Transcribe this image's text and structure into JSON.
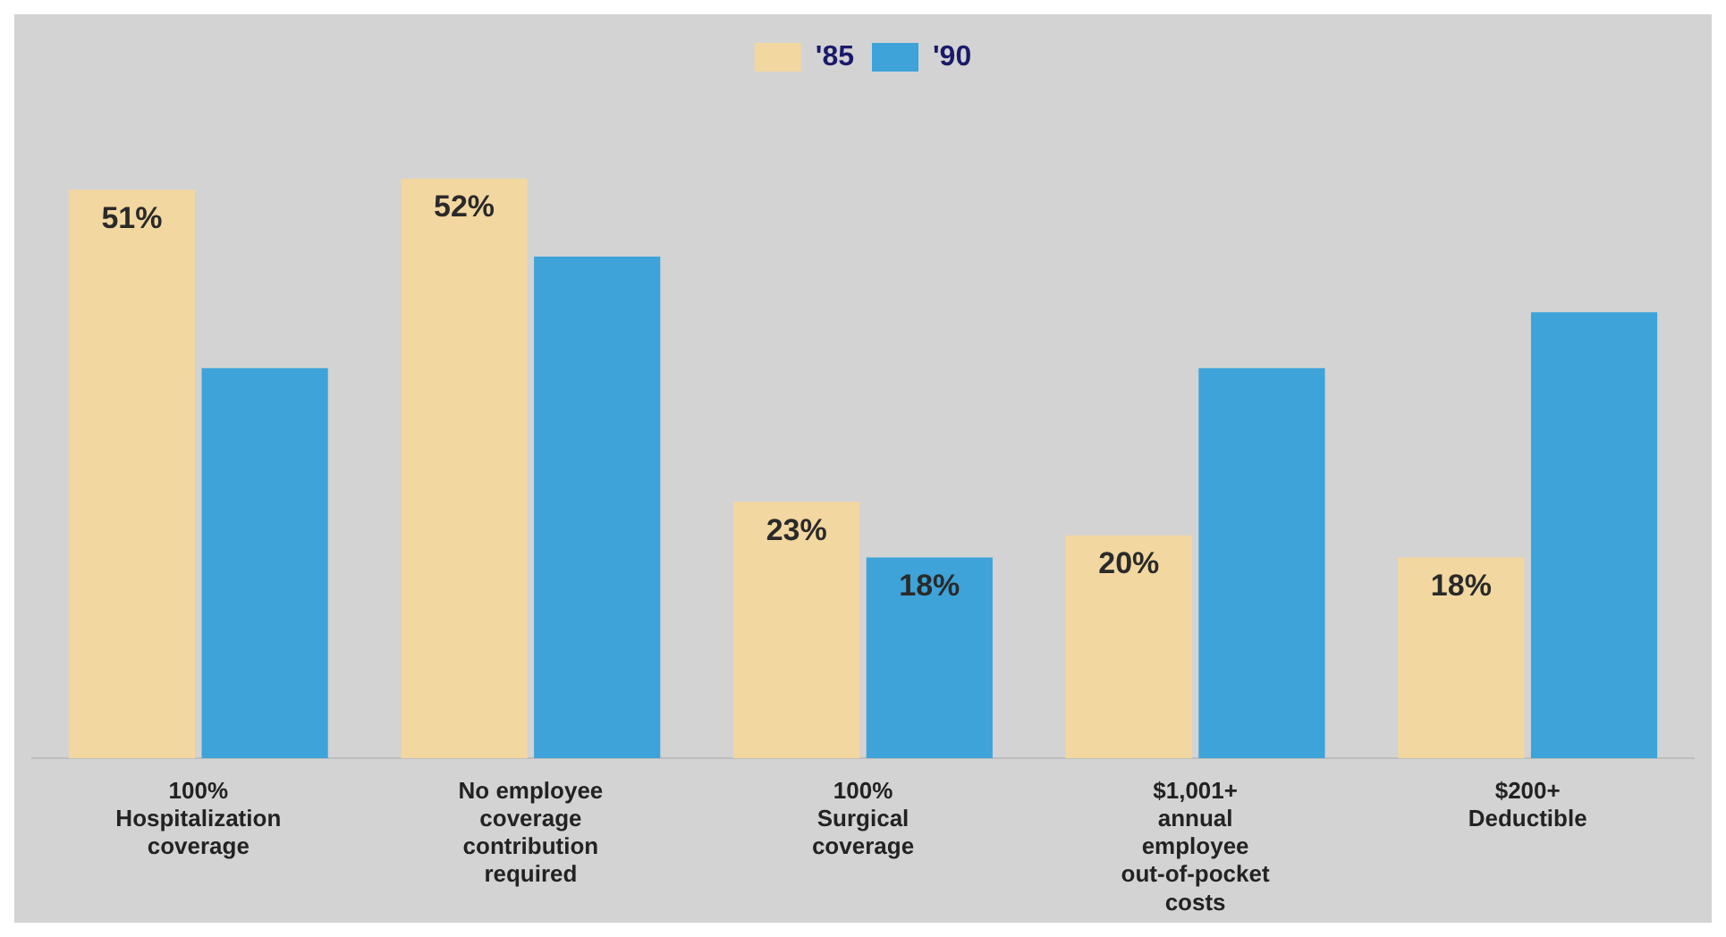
{
  "chart_data": {
    "type": "bar",
    "categories": [
      "100%\nHospitalization\ncoverage",
      "No employee\ncoverage\ncontribution\nrequired",
      "100%\nSurgical\ncoverage",
      "$1,001+\nannual\nemployee\nout-of-pocket\ncosts",
      "$200+\nDeductible"
    ],
    "series": [
      {
        "name": "'85",
        "color": "#f2d7a0",
        "values": [
          51,
          52,
          23,
          20,
          18
        ],
        "value_labels": [
          "51%",
          "52%",
          "23%",
          "20%",
          "18%"
        ]
      },
      {
        "name": "'90",
        "color": "#3da3d8",
        "values": [
          35,
          45,
          18,
          35,
          40
        ],
        "value_labels": [
          null,
          null,
          "18%",
          null,
          null
        ]
      }
    ],
    "legend": "top",
    "grid": false
  }
}
